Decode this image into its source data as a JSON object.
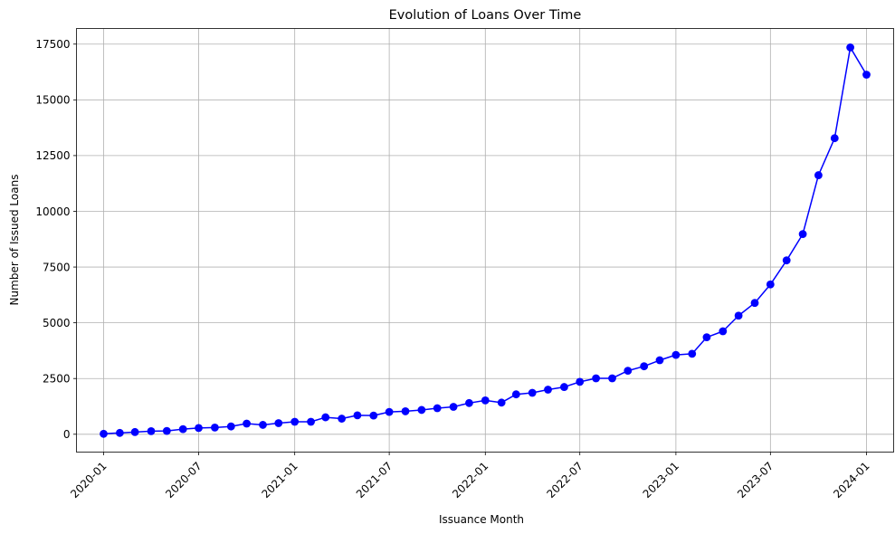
{
  "chart_data": {
    "type": "line",
    "title": "Evolution of Loans Over Time",
    "xlabel": "Issuance Month",
    "ylabel": "Number of Issued Loans",
    "ylim": [
      -800,
      18200
    ],
    "xlim": [
      "2019-11-10",
      "2024-02-22"
    ],
    "grid": true,
    "color": "#0000ff",
    "marker": "circle",
    "yticks": [
      0,
      2500,
      5000,
      7500,
      10000,
      12500,
      15000,
      17500
    ],
    "xticks": [
      "2020-01",
      "2020-07",
      "2021-01",
      "2021-07",
      "2022-01",
      "2022-07",
      "2023-01",
      "2023-07",
      "2024-01"
    ],
    "series": [
      {
        "x": [
          "2020-01",
          "2020-02",
          "2020-03",
          "2020-04",
          "2020-05",
          "2020-06",
          "2020-07",
          "2020-08",
          "2020-09",
          "2020-10",
          "2020-11",
          "2020-12",
          "2021-01",
          "2021-02",
          "2021-03",
          "2021-04",
          "2021-05",
          "2021-06",
          "2021-07",
          "2021-08",
          "2021-09",
          "2021-10",
          "2021-11",
          "2021-12",
          "2022-01",
          "2022-02",
          "2022-03",
          "2022-04",
          "2022-05",
          "2022-06",
          "2022-07",
          "2022-08",
          "2022-09",
          "2022-10",
          "2022-11",
          "2022-12",
          "2023-01",
          "2023-02",
          "2023-03",
          "2023-04",
          "2023-05",
          "2023-06",
          "2023-07",
          "2023-08",
          "2023-09",
          "2023-10",
          "2023-11",
          "2023-12",
          "2024-01"
        ],
        "values": [
          20,
          60,
          100,
          140,
          150,
          230,
          280,
          300,
          350,
          480,
          420,
          500,
          560,
          560,
          760,
          700,
          850,
          840,
          1000,
          1030,
          1090,
          1170,
          1230,
          1400,
          1520,
          1420,
          1790,
          1860,
          2000,
          2120,
          2350,
          2510,
          2510,
          2850,
          3050,
          3320,
          3560,
          3610,
          4350,
          4620,
          5320,
          5890,
          6720,
          7800,
          8980,
          11620,
          13280,
          17350,
          16130
        ]
      }
    ]
  }
}
